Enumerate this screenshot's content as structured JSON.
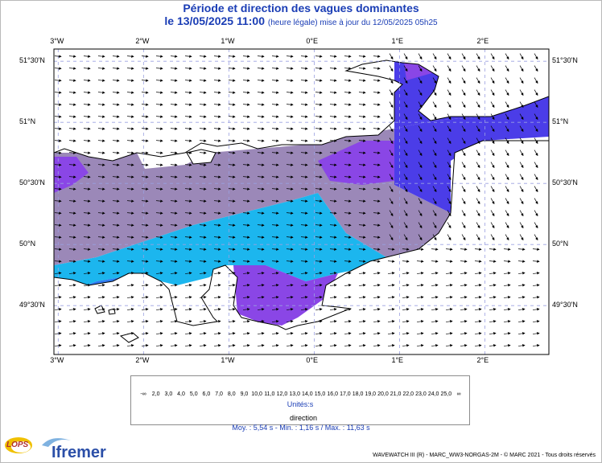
{
  "header": {
    "title": "Période et direction des vagues dominantes",
    "date": "le 13/05/2025 11:00",
    "subtitle": "(heure légale) mise à jour du 12/05/2025 05h25"
  },
  "map": {
    "lon_labels": [
      "3°W",
      "2°W",
      "1°W",
      "0°E",
      "1°E",
      "2°E"
    ],
    "lat_labels": [
      "51°30'N",
      "51°N",
      "50°30'N",
      "50°N",
      "49°30'N"
    ],
    "lon_values": [
      -3,
      -2,
      -1,
      0,
      1,
      2
    ],
    "lat_values": [
      51.5,
      51.0,
      50.5,
      50.0,
      49.5
    ],
    "extent": {
      "lon_min": -3.05,
      "lon_max": 2.75,
      "lat_min": 49.1,
      "lat_max": 51.6
    },
    "regions": [
      {
        "name": "west-channel",
        "period_s": 3.0
      },
      {
        "name": "central-channel",
        "period_s": 7.5
      },
      {
        "name": "bay-of-seine",
        "period_s": 4.0
      },
      {
        "name": "eastern-channel",
        "period_s": 6.0
      },
      {
        "name": "dover-strait",
        "period_s": 5.0
      },
      {
        "name": "north-sea",
        "period_s": 6.0
      }
    ]
  },
  "legend": {
    "tick_labels": [
      "-∞",
      "2,0",
      "3,0",
      "4,0",
      "5,0",
      "6,0",
      "7,0",
      "8,0",
      "9,0",
      "10,0",
      "11,0",
      "12,0",
      "13,0",
      "14,0",
      "15,0",
      "16,0",
      "17,0",
      "18,0",
      "19,0",
      "20,0",
      "21,0",
      "22,0",
      "23,0",
      "24,0",
      "25,0",
      "∞"
    ],
    "colors": [
      "#c8c8c8",
      "#9b88b8",
      "#8a46e6",
      "#6a3ff0",
      "#4b3de8",
      "#3a5cf0",
      "#2f7af0",
      "#2498ee",
      "#1cb6ee",
      "#17ccec",
      "#22e0c0",
      "#30e060",
      "#6ae030",
      "#a8e428",
      "#e0ec20",
      "#f4e020",
      "#f8c818",
      "#f8ac18",
      "#f89018",
      "#f67418",
      "#f05a18",
      "#e84018",
      "#e02818",
      "#d01818",
      "#c41010"
    ],
    "unit": "Unités:s",
    "direction_label": "direction"
  },
  "stats": {
    "text": "Moy. : 5,54 s   -   Min. : 1,16 s / Max. : 11,63 s"
  },
  "footer": {
    "credit": "WAVEWATCH III (R) - MARC_WW3-NORGAS-2M - © MARC 2021 - Tous droits réservés",
    "logo_lops": "LOPS",
    "logo_ifremer": "Ifremer"
  }
}
